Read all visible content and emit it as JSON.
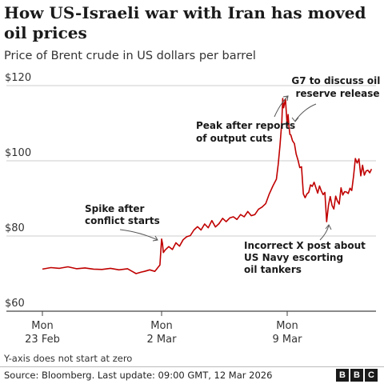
{
  "title": "How US-Israeli war with Iran has moved oil prices",
  "subtitle": "Price of Brent crude in US dollars per barrel",
  "note": "Y-axis does not start at zero",
  "source": "Source: Bloomberg. Last update: 09:00 GMT, 12 Mar 2026",
  "logo": [
    "B",
    "B",
    "C"
  ],
  "colors": {
    "line": "#c00000",
    "grid": "#cccccc",
    "axis": "#444444"
  },
  "chart_data": {
    "type": "line",
    "title": "How US-Israeli war with Iran has moved oil prices",
    "subtitle": "Price of Brent crude in US dollars per barrel",
    "ylabel": "",
    "xlabel": "",
    "ylim": [
      60,
      120
    ],
    "yticks": [
      "$120",
      "$100",
      "$80",
      "$60"
    ],
    "ytick_values": [
      120,
      100,
      80,
      60
    ],
    "grid": true,
    "xticks": [
      {
        "day": 0,
        "line1": "Mon",
        "line2": "23 Feb"
      },
      {
        "day": 7,
        "line1": "Mon",
        "line2": "2 Mar"
      },
      {
        "day": 14,
        "line1": "Mon",
        "line2": "9 Mar"
      }
    ],
    "series": [
      {
        "x": [
          0,
          0.5,
          1,
          1.5,
          2,
          2.5,
          3,
          3.5,
          4,
          4.5,
          5,
          5.3,
          5.5,
          5.8,
          6,
          6.3,
          6.6,
          6.9,
          7.0,
          7.05,
          7.1,
          7.2,
          7.4,
          7.6,
          7.8,
          8,
          8.2,
          8.4,
          8.6,
          8.8,
          9,
          9.2,
          9.4,
          9.6,
          9.8,
          10,
          10.2,
          10.4,
          10.6,
          10.8,
          11,
          11.2,
          11.4,
          11.6,
          11.8,
          12,
          12.2,
          12.4,
          12.6,
          12.8,
          13,
          13.2,
          13.4,
          13.5,
          13.6,
          13.7,
          13.75,
          13.8,
          13.9,
          14.0,
          14.05,
          14.1,
          14.15,
          14.2,
          14.3,
          14.4,
          14.5,
          14.6,
          14.7,
          14.8,
          14.9,
          15,
          15.1,
          15.2,
          15.3,
          15.4,
          15.5,
          15.6,
          15.7,
          15.8,
          15.9,
          16,
          16.1,
          16.2,
          16.3,
          16.4,
          16.5,
          16.6,
          16.7,
          16.8,
          16.9,
          17,
          17.1,
          17.2,
          17.3,
          17.4,
          17.5,
          17.6,
          17.7,
          17.8,
          17.9,
          18,
          18.1,
          18.2,
          18.3,
          18.4,
          18.5,
          18.6,
          18.7
        ],
        "values": [
          71.2,
          71.6,
          71.4,
          71.8,
          71.3,
          71.5,
          71.2,
          71.1,
          71.4,
          71.0,
          71.3,
          70.5,
          70.0,
          70.4,
          70.6,
          71.0,
          70.6,
          72.3,
          79.2,
          78.0,
          75.6,
          76.3,
          77.2,
          76.4,
          78.2,
          77.3,
          79.0,
          79.8,
          80.1,
          81.6,
          82.5,
          81.6,
          83.2,
          82.2,
          84.1,
          82.4,
          83.3,
          84.7,
          83.8,
          84.8,
          85.1,
          84.4,
          85.7,
          85.1,
          86.5,
          85.4,
          85.7,
          87.1,
          87.7,
          88.6,
          91.2,
          93.3,
          95.1,
          99.1,
          104.1,
          110.5,
          116.6,
          114.1,
          116.4,
          109.3,
          112.3,
          109.1,
          107.0,
          106.9,
          105.3,
          104.6,
          101.8,
          100.2,
          98.2,
          98.4,
          91.2,
          90.2,
          91.2,
          91.6,
          93.6,
          93.2,
          94.3,
          92.8,
          91.4,
          93.3,
          92.0,
          91.0,
          91.6,
          83.8,
          88.2,
          90.5,
          88.1,
          87.2,
          90.6,
          89.3,
          88.5,
          92.8,
          90.9,
          91.8,
          91.7,
          91.3,
          92.7,
          92.1,
          96.0,
          100.6,
          99.4,
          100.5,
          96.0,
          98.8,
          96.2,
          97.3,
          97.5,
          96.8,
          97.8
        ]
      }
    ],
    "annotations": [
      {
        "lines": [
          "G7 to discuss oil",
          "reserve release"
        ]
      },
      {
        "lines": [
          "Peak after reports",
          "of output cuts"
        ]
      },
      {
        "lines": [
          "Spike after",
          "conflict starts"
        ]
      },
      {
        "lines": [
          "Incorrect X post about",
          "US Navy escorting",
          "oil tankers"
        ]
      }
    ]
  }
}
